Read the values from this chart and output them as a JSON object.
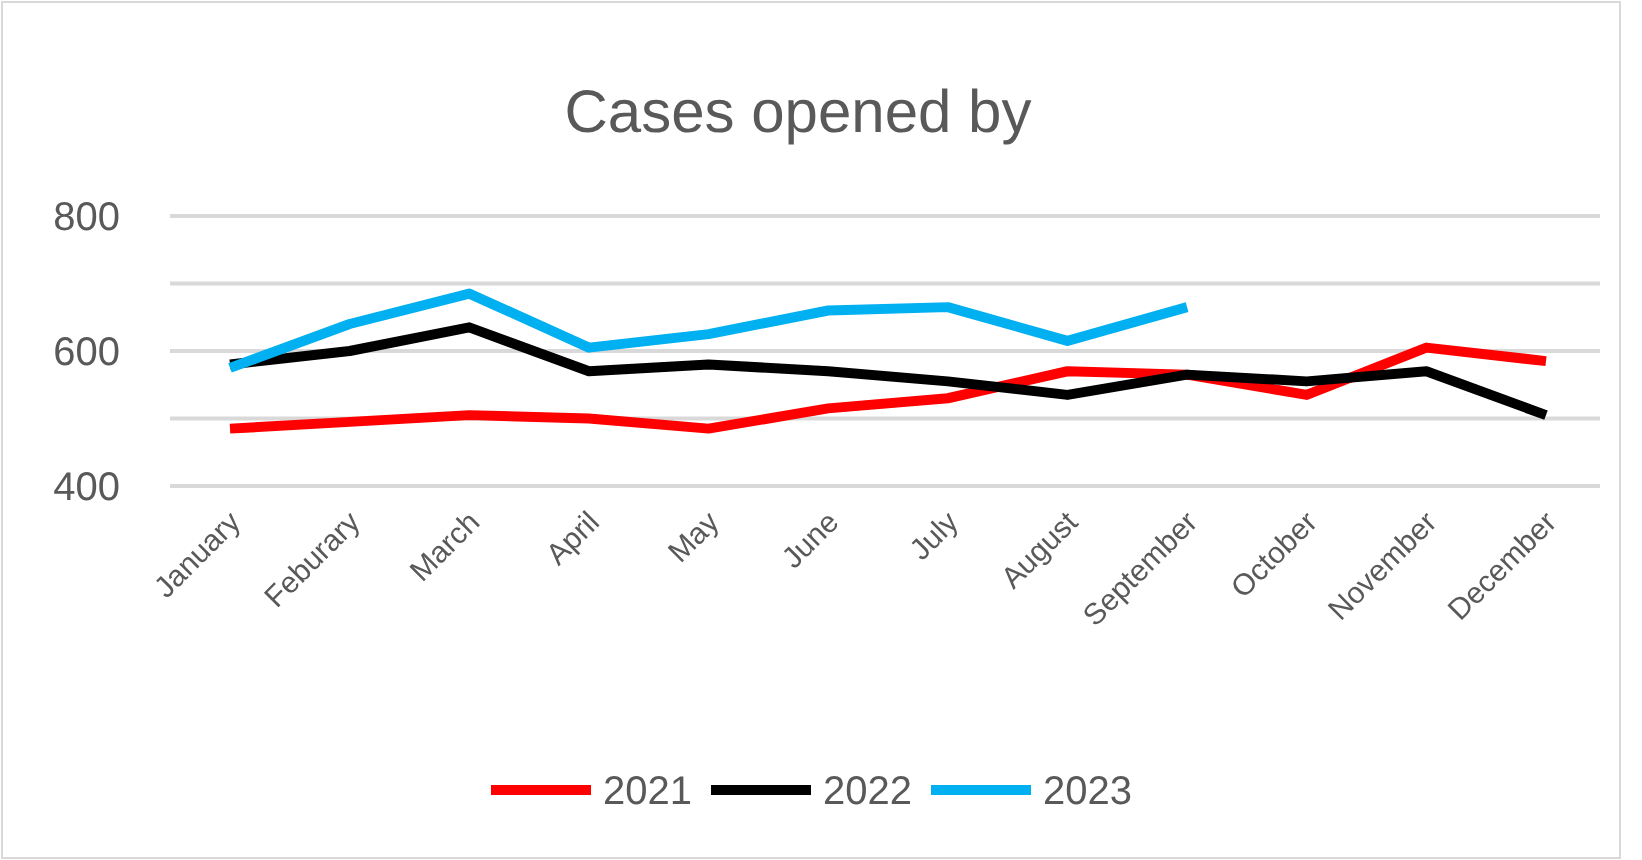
{
  "chart_data": {
    "type": "line",
    "title": "Cases opened by",
    "categories": [
      "January",
      "Feburary",
      "March",
      "April",
      "May",
      "June",
      "July",
      "August",
      "September",
      "October",
      "November",
      "December"
    ],
    "series": [
      {
        "name": "2021",
        "color": "#ff0000",
        "values": [
          485,
          495,
          505,
          500,
          485,
          515,
          530,
          570,
          565,
          535,
          605,
          585
        ]
      },
      {
        "name": "2022",
        "color": "#000000",
        "values": [
          580,
          600,
          635,
          570,
          580,
          570,
          555,
          535,
          565,
          555,
          570,
          505
        ]
      },
      {
        "name": "2023",
        "color": "#00b0f0",
        "values": [
          575,
          640,
          685,
          605,
          625,
          660,
          665,
          615,
          665,
          null,
          null,
          null
        ]
      }
    ],
    "ylim": [
      400,
      800
    ],
    "yticks": [
      400,
      {
        "value": 500,
        "label": null
      },
      600,
      {
        "value": 700,
        "label": null
      },
      800
    ],
    "grid": "y",
    "legend": "bottom",
    "line_style": "solid",
    "marker": "none"
  }
}
